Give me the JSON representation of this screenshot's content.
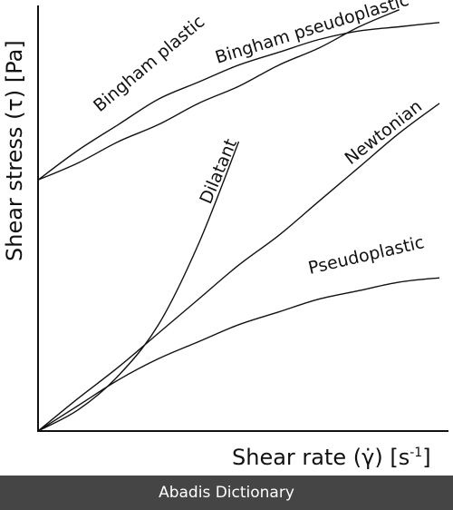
{
  "chart_data": {
    "type": "line",
    "xlabel": "Shear rate (γ̇) [s",
    "xlabel_sup": "-1",
    "xlabel_tail": "]",
    "ylabel": "Shear stress (τ) [Pa]",
    "grid": false,
    "legend": "none",
    "x": [
      0,
      0.1,
      0.2,
      0.3,
      0.4,
      0.5,
      0.6,
      0.7,
      0.8,
      0.9,
      1.0
    ],
    "series": [
      {
        "name": "Bingham plastic",
        "label_on": "upper",
        "values": [
          0.59,
          0.63,
          0.68,
          0.72,
          0.77,
          0.81,
          0.86,
          0.9,
          0.95,
          0.99,
          null
        ]
      },
      {
        "name": "Bingham pseudoplastic",
        "label_on": "upper",
        "values": [
          0.59,
          0.66,
          0.72,
          0.78,
          0.82,
          0.86,
          0.89,
          0.92,
          0.94,
          0.95,
          0.96
        ]
      },
      {
        "name": "Dilatant",
        "label_on": "upper",
        "values": [
          0,
          0.05,
          0.13,
          0.25,
          0.44,
          0.68,
          null,
          null,
          null,
          null,
          null
        ]
      },
      {
        "name": "Newtonian",
        "label_on": "upper",
        "values": [
          0,
          0.077,
          0.15,
          0.23,
          0.31,
          0.39,
          0.46,
          0.54,
          0.62,
          0.7,
          0.77
        ]
      },
      {
        "name": "Pseudoplastic",
        "label_on": "upper",
        "values": [
          0,
          0.06,
          0.12,
          0.17,
          0.21,
          0.25,
          0.28,
          0.31,
          0.33,
          0.35,
          0.36
        ]
      }
    ],
    "xlim": [
      0,
      1.0
    ],
    "ylim": [
      0,
      1.0
    ]
  },
  "footer": {
    "text": "Abadis Dictionary",
    "background": "#454545"
  }
}
